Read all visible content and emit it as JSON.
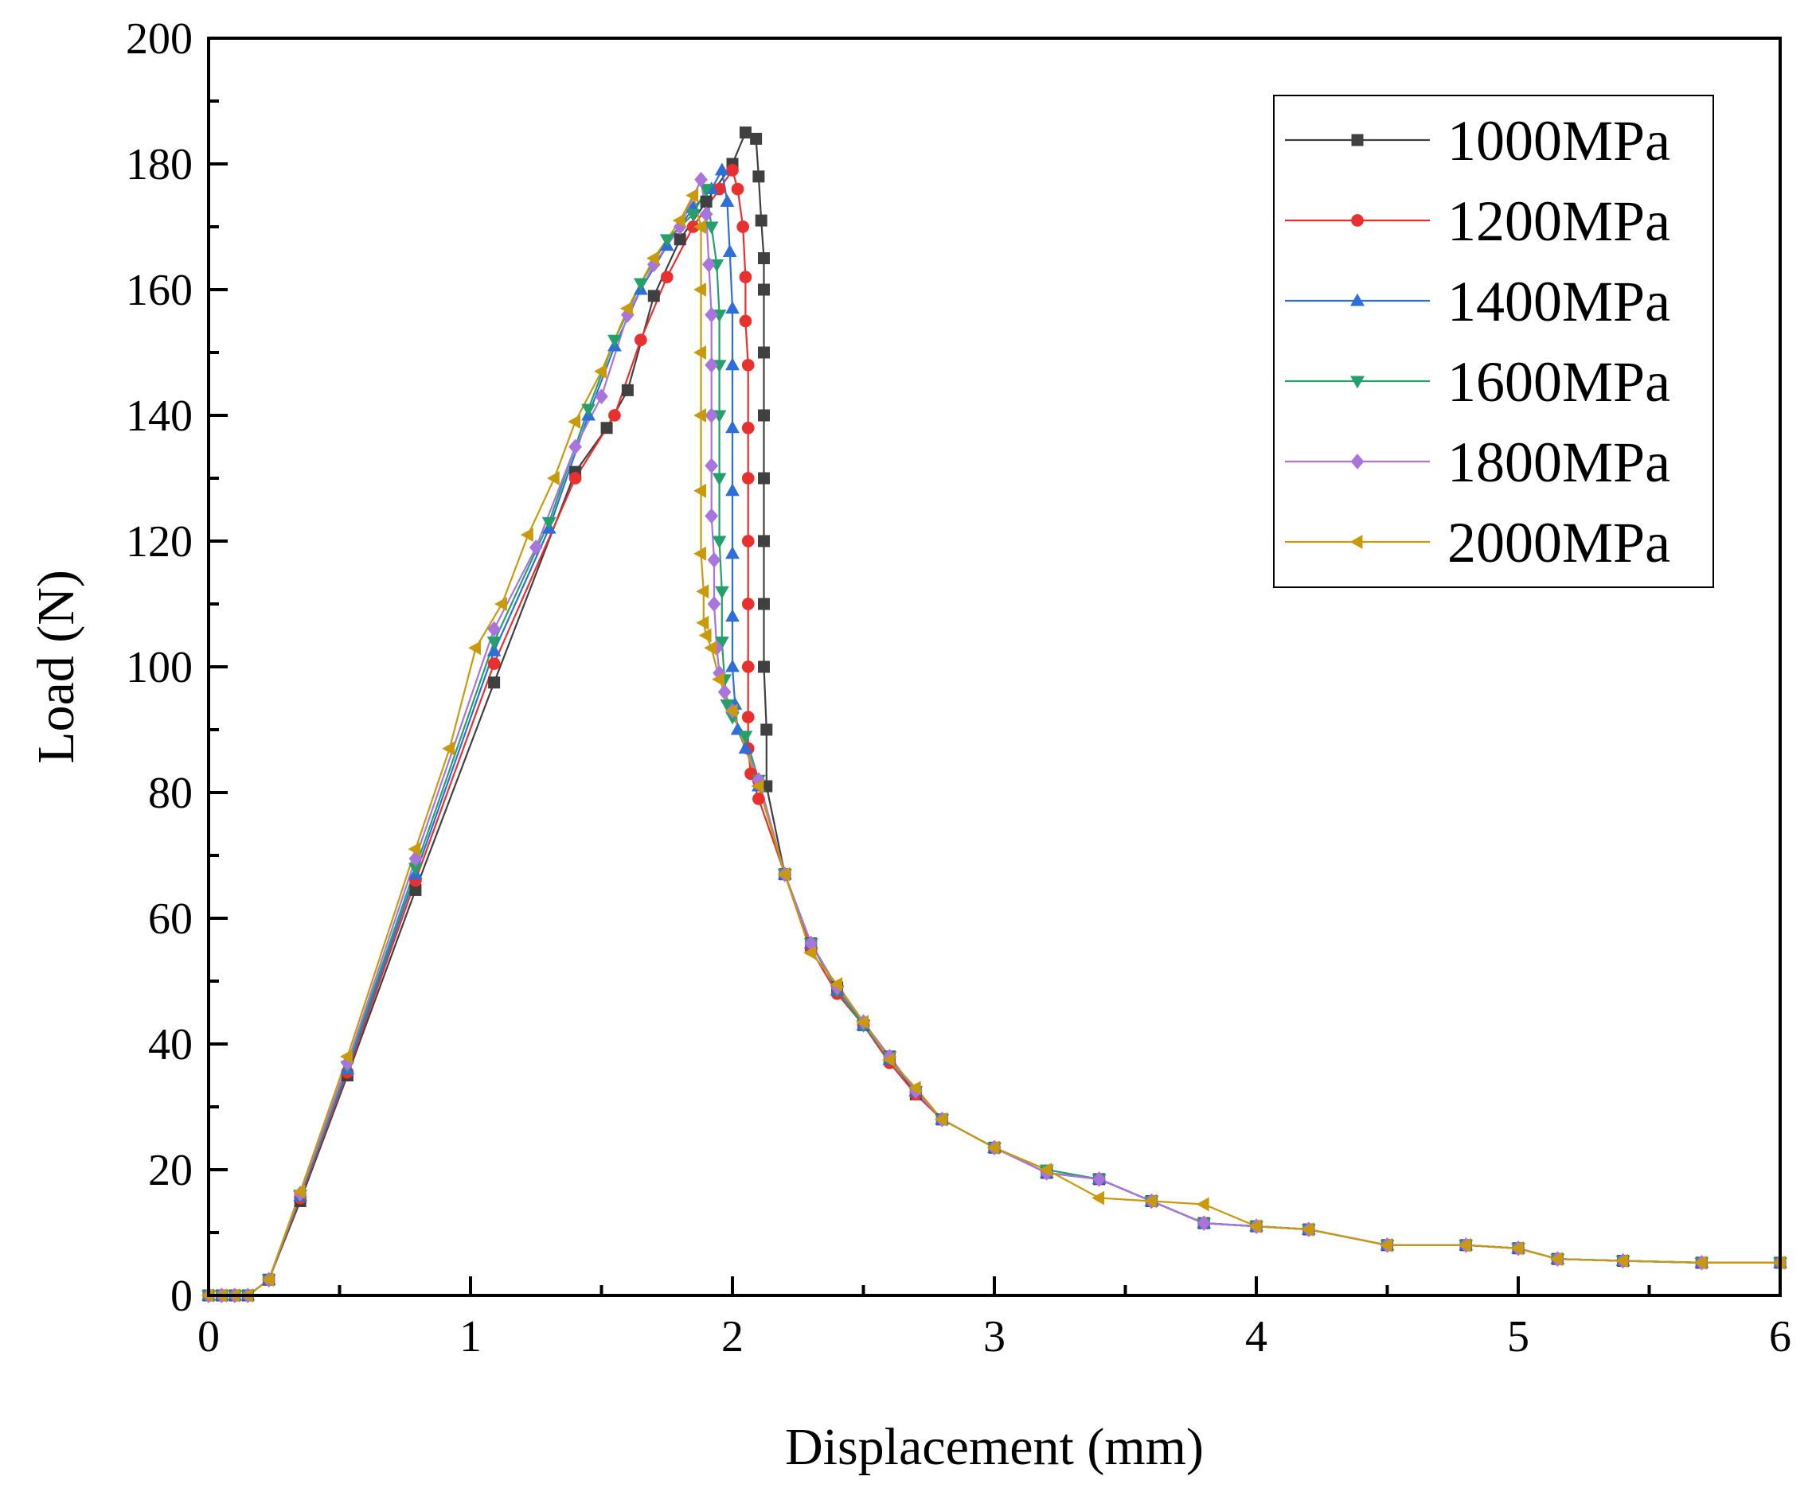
{
  "chart_data": {
    "type": "line",
    "title": "",
    "xlabel": "Displacement (mm)",
    "ylabel": "Load (N)",
    "xlim": [
      0,
      6
    ],
    "ylim": [
      0,
      200
    ],
    "xticks": [
      "0",
      "1",
      "2",
      "3",
      "4",
      "5",
      "6"
    ],
    "yticks": [
      "0",
      "20",
      "40",
      "60",
      "80",
      "100",
      "120",
      "140",
      "160",
      "180",
      "200"
    ],
    "grid": false,
    "legend_position": "top-right",
    "series": [
      {
        "name": "1000MPa",
        "color": "#404040",
        "marker": "square",
        "x": [
          0,
          0.05,
          0.1,
          0.15,
          0.23,
          0.35,
          0.53,
          0.79,
          1.09,
          1.4,
          1.52,
          1.6,
          1.7,
          1.8,
          1.9,
          2.0,
          2.05,
          2.09,
          2.1,
          2.11,
          2.12,
          2.12,
          2.12,
          2.12,
          2.12,
          2.12,
          2.12,
          2.12,
          2.13,
          2.13,
          2.2,
          2.3,
          2.4,
          2.5,
          2.6,
          2.7,
          2.8,
          3.0,
          3.2,
          3.4,
          3.6,
          3.8,
          4.0,
          4.2,
          4.5,
          4.8,
          5.0,
          5.15,
          5.4,
          5.7,
          6.0
        ],
        "y": [
          0,
          0,
          0,
          0,
          2.5,
          15,
          35,
          64.5,
          97.5,
          131,
          138,
          144,
          159,
          168,
          174,
          180,
          185,
          184,
          178,
          171,
          165,
          160,
          150,
          140,
          130,
          120,
          110,
          100,
          90,
          81,
          67,
          56,
          49,
          43,
          38,
          32,
          28,
          23.5,
          19.5,
          18.5,
          15,
          11.5,
          11,
          10.5,
          8,
          8,
          7.5,
          5.8,
          5.5,
          5.2,
          5.2
        ]
      },
      {
        "name": "1200MPa",
        "color": "#e8312f",
        "marker": "circle",
        "x": [
          0,
          0.05,
          0.1,
          0.15,
          0.23,
          0.35,
          0.53,
          0.79,
          1.09,
          1.4,
          1.55,
          1.65,
          1.75,
          1.85,
          1.95,
          2.0,
          2.02,
          2.04,
          2.05,
          2.05,
          2.06,
          2.06,
          2.06,
          2.06,
          2.06,
          2.06,
          2.06,
          2.06,
          2.07,
          2.1,
          2.2,
          2.3,
          2.4,
          2.5,
          2.6,
          2.7,
          2.8,
          3.0,
          3.2,
          3.4,
          3.6,
          3.8,
          4.0,
          4.2,
          4.5,
          4.8,
          5.0,
          5.15,
          5.4,
          5.7,
          6.0
        ],
        "y": [
          0,
          0,
          0,
          0,
          2.5,
          15.5,
          35.5,
          66,
          100.5,
          130,
          140,
          152,
          162,
          170,
          176,
          179,
          176,
          170,
          162,
          155,
          148,
          138,
          130,
          120,
          110,
          100,
          92,
          87,
          83,
          79,
          67,
          55,
          48,
          43,
          37,
          32,
          28,
          23.5,
          19.5,
          18.5,
          15,
          11.5,
          11,
          10.5,
          8,
          8,
          7.5,
          5.8,
          5.5,
          5.2,
          5.2
        ]
      },
      {
        "name": "1400MPa",
        "color": "#2d6fd6",
        "marker": "triangle-up",
        "x": [
          0,
          0.05,
          0.1,
          0.15,
          0.23,
          0.35,
          0.53,
          0.79,
          1.09,
          1.3,
          1.45,
          1.55,
          1.65,
          1.75,
          1.85,
          1.92,
          1.96,
          1.98,
          1.99,
          2.0,
          2.0,
          2.0,
          2.0,
          2.0,
          2.0,
          2.0,
          2.01,
          2.02,
          2.05,
          2.1,
          2.2,
          2.3,
          2.4,
          2.5,
          2.6,
          2.7,
          2.8,
          3.0,
          3.2,
          3.4,
          3.6,
          3.8,
          4.0,
          4.2,
          4.5,
          4.8,
          5.0,
          5.15,
          5.4,
          5.7,
          6.0
        ],
        "y": [
          0,
          0,
          0,
          0,
          2.5,
          15.8,
          36,
          67,
          102.5,
          122,
          140,
          151,
          160,
          167,
          173,
          176,
          179,
          174,
          166,
          157,
          148,
          138,
          128,
          118,
          108,
          100,
          94,
          90,
          87,
          81,
          67,
          56,
          48.5,
          43,
          37.5,
          32.5,
          28,
          23.5,
          19.5,
          18.5,
          15,
          11.5,
          11,
          10.5,
          8,
          8,
          7.5,
          5.8,
          5.5,
          5.2,
          5.2
        ]
      },
      {
        "name": "1600MPa",
        "color": "#24a16b",
        "marker": "triangle-down",
        "x": [
          0,
          0.05,
          0.1,
          0.15,
          0.23,
          0.35,
          0.53,
          0.79,
          1.09,
          1.3,
          1.45,
          1.55,
          1.65,
          1.75,
          1.85,
          1.9,
          1.92,
          1.94,
          1.95,
          1.95,
          1.95,
          1.95,
          1.95,
          1.96,
          1.96,
          1.97,
          1.98,
          2.0,
          2.05,
          2.1,
          2.2,
          2.3,
          2.4,
          2.5,
          2.6,
          2.7,
          2.8,
          3.0,
          3.2,
          3.4,
          3.6,
          3.8,
          4.0,
          4.2,
          4.5,
          4.8,
          5.0,
          5.15,
          5.4,
          5.7,
          6.0
        ],
        "y": [
          0,
          0,
          0,
          0,
          2.5,
          16,
          36.5,
          68,
          104,
          123,
          141,
          152,
          161,
          168,
          172,
          176,
          170,
          164,
          156,
          148,
          140,
          130,
          120,
          112,
          104,
          98,
          94,
          92,
          89,
          82,
          67,
          56,
          48.5,
          43,
          38,
          32.5,
          28,
          23.5,
          20,
          18.5,
          15,
          11.5,
          11,
          10.5,
          8,
          8,
          7.5,
          5.8,
          5.5,
          5.2,
          5.2
        ]
      },
      {
        "name": "1800MPa",
        "color": "#a974dc",
        "marker": "diamond",
        "x": [
          0,
          0.05,
          0.1,
          0.15,
          0.23,
          0.35,
          0.53,
          0.79,
          1.09,
          1.25,
          1.4,
          1.5,
          1.6,
          1.7,
          1.8,
          1.88,
          1.9,
          1.91,
          1.92,
          1.92,
          1.92,
          1.92,
          1.92,
          1.93,
          1.93,
          1.94,
          1.95,
          1.97,
          2.0,
          2.1,
          2.2,
          2.3,
          2.4,
          2.5,
          2.6,
          2.7,
          2.8,
          3.0,
          3.2,
          3.4,
          3.6,
          3.8,
          4.0,
          4.2,
          4.5,
          4.8,
          5.0,
          5.15,
          5.4,
          5.7,
          6.0
        ],
        "y": [
          0,
          0,
          0,
          0,
          2.5,
          16.2,
          37,
          69.5,
          106,
          119,
          135,
          143,
          156,
          164,
          170,
          177.5,
          172,
          164,
          156,
          148,
          140,
          132,
          124,
          117,
          110,
          103,
          99,
          96,
          93,
          82,
          67,
          56,
          49,
          43.5,
          38,
          32.5,
          28,
          23.5,
          19.5,
          18.5,
          15,
          11.5,
          11,
          10.5,
          8,
          8,
          7.5,
          5.8,
          5.5,
          5.2,
          5.2
        ]
      },
      {
        "name": "2000MPa",
        "color": "#c89a0c",
        "marker": "triangle-left",
        "x": [
          0,
          0.05,
          0.1,
          0.15,
          0.23,
          0.35,
          0.53,
          0.79,
          0.92,
          1.02,
          1.12,
          1.22,
          1.32,
          1.4,
          1.5,
          1.6,
          1.7,
          1.8,
          1.85,
          1.88,
          1.88,
          1.88,
          1.88,
          1.88,
          1.88,
          1.89,
          1.89,
          1.9,
          1.92,
          1.95,
          2.0,
          2.1,
          2.2,
          2.3,
          2.4,
          2.5,
          2.6,
          2.7,
          2.8,
          3.0,
          3.2,
          3.4,
          3.6,
          3.8,
          4.0,
          4.2,
          4.5,
          4.8,
          5.0,
          5.15,
          5.4,
          5.7,
          6.0
        ],
        "y": [
          0,
          0,
          0,
          0,
          2.5,
          16.5,
          38,
          71,
          87,
          103,
          110,
          121,
          130,
          139,
          147,
          157,
          165,
          171,
          175,
          170,
          160,
          150,
          140,
          128,
          118,
          112,
          107,
          105,
          103,
          98,
          93,
          81,
          67,
          54.5,
          49.5,
          43.5,
          37.5,
          33,
          28,
          23.5,
          20,
          15.5,
          15,
          14.5,
          11,
          10.5,
          8,
          8,
          7.5,
          5.8,
          5.5,
          5.2,
          5.2
        ]
      }
    ]
  }
}
